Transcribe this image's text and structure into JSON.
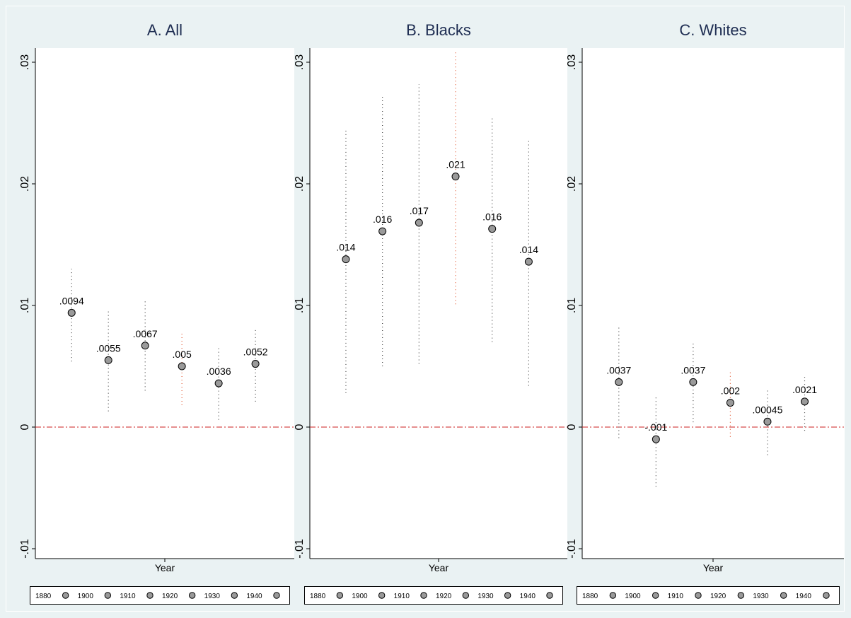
{
  "chart_data": [
    {
      "type": "scatter",
      "title": "A. All",
      "xlabel": "Year",
      "ylabel": "",
      "ylim": [
        -0.01,
        0.03
      ],
      "yticks": [
        -0.01,
        0,
        0.01,
        0.02,
        0.03
      ],
      "ytick_labels": [
        "-.01",
        "0",
        ".01",
        ".02",
        ".03"
      ],
      "reference_line": 0,
      "legend": [
        "1880",
        "1900",
        "1910",
        "1920",
        "1930",
        "1940"
      ],
      "legend_position": "bottom",
      "series": [
        {
          "name": "1880",
          "value": 0.0094,
          "label": ".0094",
          "ci": [
            0.0054,
            0.013
          ]
        },
        {
          "name": "1900",
          "value": 0.0055,
          "label": ".0055",
          "ci": [
            0.0013,
            0.0097
          ]
        },
        {
          "name": "1910",
          "value": 0.0067,
          "label": ".0067",
          "ci": [
            0.003,
            0.0105
          ]
        },
        {
          "name": "1920",
          "value": 0.005,
          "label": ".005",
          "ci": [
            0.0018,
            0.0078
          ]
        },
        {
          "name": "1930",
          "value": 0.0036,
          "label": ".0036",
          "ci": [
            0.0006,
            0.0066
          ]
        },
        {
          "name": "1940",
          "value": 0.0052,
          "label": ".0052",
          "ci": [
            0.0021,
            0.0082
          ]
        }
      ]
    },
    {
      "type": "scatter",
      "title": "B. Blacks",
      "xlabel": "Year",
      "ylabel": "",
      "ylim": [
        -0.01,
        0.03
      ],
      "yticks": [
        -0.01,
        0,
        0.01,
        0.02,
        0.03
      ],
      "ytick_labels": [
        "-.01",
        "0",
        ".01",
        ".02",
        ".03"
      ],
      "reference_line": 0,
      "legend": [
        "1880",
        "1900",
        "1910",
        "1920",
        "1930",
        "1940"
      ],
      "legend_position": "bottom",
      "series": [
        {
          "name": "1880",
          "value": 0.0138,
          "label": ".014",
          "ci": [
            0.0028,
            0.0246
          ]
        },
        {
          "name": "1900",
          "value": 0.0161,
          "label": ".016",
          "ci": [
            0.005,
            0.0272
          ]
        },
        {
          "name": "1910",
          "value": 0.0168,
          "label": ".017",
          "ci": [
            0.0052,
            0.0282
          ]
        },
        {
          "name": "1920",
          "value": 0.0206,
          "label": ".021",
          "ci": [
            0.0101,
            0.0308
          ]
        },
        {
          "name": "1930",
          "value": 0.0163,
          "label": ".016",
          "ci": [
            0.007,
            0.0255
          ]
        },
        {
          "name": "1940",
          "value": 0.0136,
          "label": ".014",
          "ci": [
            0.0034,
            0.0236
          ]
        }
      ]
    },
    {
      "type": "scatter",
      "title": "C. Whites",
      "xlabel": "Year",
      "ylabel": "",
      "ylim": [
        -0.01,
        0.03
      ],
      "yticks": [
        -0.01,
        0,
        0.01,
        0.02,
        0.03
      ],
      "ytick_labels": [
        "-.01",
        "0",
        ".01",
        ".02",
        ".03"
      ],
      "reference_line": 0,
      "legend": [
        "1880",
        "1900",
        "1910",
        "1920",
        "1930",
        "1940"
      ],
      "legend_position": "bottom",
      "series": [
        {
          "name": "1880",
          "value": 0.0037,
          "label": ".0037",
          "ci": [
            -0.0009,
            0.0082
          ]
        },
        {
          "name": "1900",
          "value": -0.001,
          "label": "-.001",
          "ci": [
            -0.0049,
            0.0026
          ]
        },
        {
          "name": "1910",
          "value": 0.0037,
          "label": ".0037",
          "ci": [
            0.0004,
            0.0069
          ]
        },
        {
          "name": "1920",
          "value": 0.002,
          "label": ".002",
          "ci": [
            -0.0008,
            0.0047
          ]
        },
        {
          "name": "1930",
          "value": 0.00045,
          "label": ".00045",
          "ci": [
            -0.0023,
            0.0032
          ]
        },
        {
          "name": "1940",
          "value": 0.0021,
          "label": ".0021",
          "ci": [
            -0.0003,
            0.0043
          ]
        }
      ]
    }
  ],
  "colors": {
    "background": "#eaf2f3",
    "plot_background": "#ffffff",
    "title": "#1e2d52",
    "marker_fill": "#9a9a9a",
    "reference_line": "#cc1f1f",
    "ci_highlight": "#e0552e",
    "ci_normal": "#444444"
  }
}
